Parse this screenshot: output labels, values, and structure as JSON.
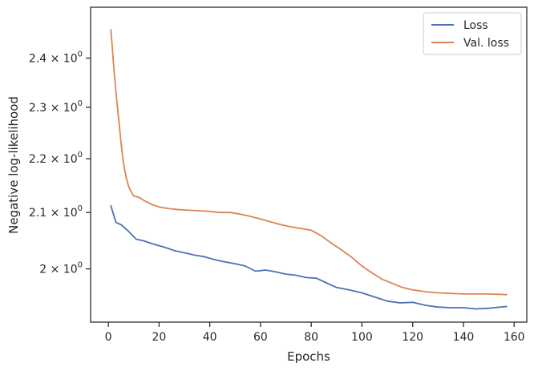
{
  "chart_data": {
    "type": "line",
    "xlabel": "Epochs",
    "ylabel": "Negative log-likelihood",
    "xlim": [
      -7,
      165
    ],
    "ylim": [
      1.91,
      2.508
    ],
    "yscale": "log",
    "grid": false,
    "legend_position": "top-right",
    "x_ticks": [
      0,
      20,
      40,
      60,
      80,
      100,
      120,
      140,
      160
    ],
    "x_tick_labels": [
      "0",
      "20",
      "40",
      "60",
      "80",
      "100",
      "120",
      "140",
      "160"
    ],
    "y_ticks": [
      2.0,
      2.1,
      2.2,
      2.3,
      2.4
    ],
    "y_tick_labels": [
      {
        "mantissa": "2",
        "base": "10",
        "exp": "0"
      },
      {
        "mantissa": "2.1",
        "base": "10",
        "exp": "0"
      },
      {
        "mantissa": "2.2",
        "base": "10",
        "exp": "0"
      },
      {
        "mantissa": "2.3",
        "base": "10",
        "exp": "0"
      },
      {
        "mantissa": "2.4",
        "base": "10",
        "exp": "0"
      }
    ],
    "series": [
      {
        "name": "Loss",
        "color": "#4c72b0",
        "x": [
          1,
          3,
          5,
          8,
          11,
          14,
          18,
          22,
          26,
          30,
          34,
          38,
          42,
          46,
          50,
          54,
          58,
          62,
          66,
          70,
          74,
          78,
          82,
          86,
          90,
          95,
          100,
          105,
          110,
          115,
          120,
          125,
          130,
          135,
          140,
          145,
          150,
          157
        ],
        "y": [
          2.112,
          2.082,
          2.078,
          2.066,
          2.052,
          2.049,
          2.043,
          2.038,
          2.032,
          2.028,
          2.024,
          2.021,
          2.016,
          2.012,
          2.009,
          2.005,
          1.996,
          1.998,
          1.995,
          1.991,
          1.989,
          1.985,
          1.984,
          1.976,
          1.968,
          1.964,
          1.959,
          1.952,
          1.945,
          1.942,
          1.943,
          1.938,
          1.935,
          1.934,
          1.934,
          1.932,
          1.933,
          1.936
        ]
      },
      {
        "name": "Val. loss",
        "color": "#dd8452",
        "x": [
          1,
          2,
          3,
          4,
          5,
          6,
          7,
          8,
          9,
          10,
          12,
          14,
          17,
          20,
          24,
          28,
          32,
          36,
          40,
          44,
          48,
          52,
          56,
          60,
          64,
          68,
          72,
          76,
          80,
          84,
          88,
          92,
          96,
          100,
          104,
          108,
          112,
          116,
          120,
          125,
          130,
          135,
          140,
          145,
          150,
          157
        ],
        "y": [
          2.46,
          2.39,
          2.33,
          2.28,
          2.23,
          2.19,
          2.165,
          2.148,
          2.138,
          2.13,
          2.128,
          2.122,
          2.115,
          2.11,
          2.107,
          2.105,
          2.104,
          2.103,
          2.102,
          2.1,
          2.1,
          2.097,
          2.093,
          2.088,
          2.083,
          2.078,
          2.074,
          2.071,
          2.068,
          2.058,
          2.045,
          2.033,
          2.02,
          2.005,
          1.993,
          1.982,
          1.975,
          1.968,
          1.964,
          1.961,
          1.959,
          1.958,
          1.957,
          1.957,
          1.957,
          1.956
        ]
      }
    ]
  }
}
